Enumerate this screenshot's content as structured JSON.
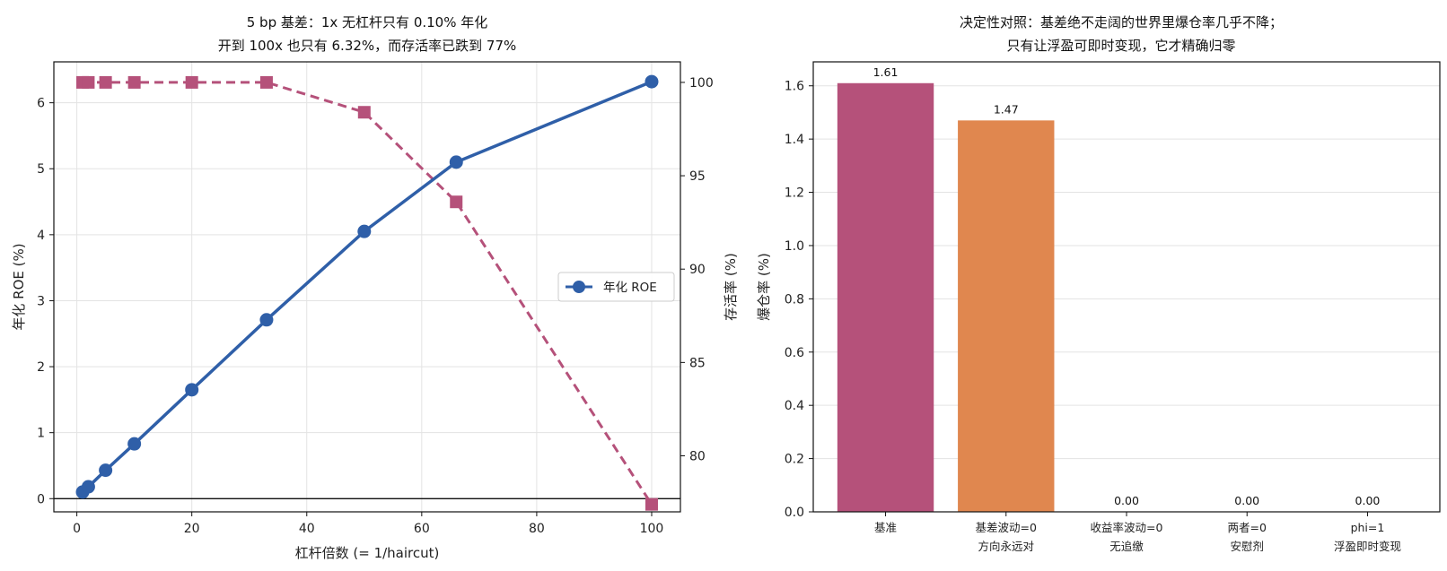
{
  "colors": {
    "roe": "#2f5fa8",
    "survival": "#b5517a",
    "bar_base": "#b5517a",
    "bar_2": "#e0874f"
  },
  "chart_data": [
    {
      "type": "line",
      "title": [
        "5 bp 基差：1x 无杠杆只有 0.10% 年化",
        "开到 100x 也只有 6.32%，而存活率已跌到 77%"
      ],
      "xlabel": "杠杆倍数 (= 1/haircut)",
      "ylabel": "年化 ROE (%)",
      "ylabel_right": "存活率 (%)",
      "xlim": [
        -4,
        105
      ],
      "ylim": [
        -0.2,
        6.62
      ],
      "ylim_right": [
        77.0,
        101.1
      ],
      "x_ticks": [
        0,
        20,
        40,
        60,
        80,
        100
      ],
      "y_ticks": [
        0,
        1,
        2,
        3,
        4,
        5,
        6
      ],
      "y_ticks_right": [
        80,
        85,
        90,
        95,
        100
      ],
      "grid": true,
      "legend": {
        "position": "center-right",
        "entries": [
          "年化 ROE"
        ]
      },
      "series": [
        {
          "name": "年化 ROE",
          "axis": "left",
          "style": "solid",
          "marker": "circle",
          "x": [
            1,
            2,
            5,
            10,
            20,
            33,
            50,
            66,
            100
          ],
          "y": [
            0.1,
            0.18,
            0.43,
            0.83,
            1.65,
            2.71,
            4.05,
            5.1,
            6.32
          ]
        },
        {
          "axis": "right",
          "style": "dashed",
          "marker": "square",
          "x": [
            1,
            2,
            5,
            10,
            20,
            33,
            50,
            66,
            100
          ],
          "y": [
            100,
            100,
            100,
            100,
            100,
            100,
            98.4,
            93.6,
            77.4
          ]
        }
      ]
    },
    {
      "type": "bar",
      "title": [
        "决定性对照：基差绝不走阔的世界里爆仓率几乎不降；",
        "只有让浮盈可即时变现，它才精确归零"
      ],
      "ylabel": "爆仓率 (%)",
      "ylim": [
        0,
        1.69
      ],
      "y_ticks": [
        "0.0",
        "0.2",
        "0.4",
        "0.6",
        "0.8",
        "1.0",
        "1.2",
        "1.4",
        "1.6"
      ],
      "grid": true,
      "categories": [
        [
          "基准"
        ],
        [
          "基差波动=0",
          "方向永远对"
        ],
        [
          "收益率波动=0",
          "无追缴"
        ],
        [
          "两者=0",
          "安慰剂"
        ],
        [
          "phi=1",
          "浮盈即时变现"
        ]
      ],
      "values": [
        1.61,
        1.47,
        0.0,
        0.0,
        0.0
      ],
      "value_labels": [
        "1.61",
        "1.47",
        "0.00",
        "0.00",
        "0.00"
      ]
    }
  ]
}
